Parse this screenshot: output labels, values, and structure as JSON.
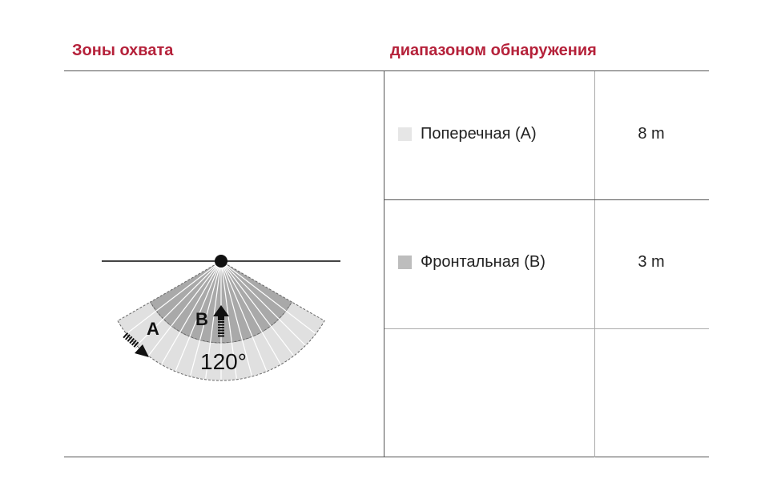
{
  "headers": {
    "zones": "Зоны охвата",
    "range": "диапазоном обнаружения"
  },
  "rows": [
    {
      "label": "Поперечная (A)",
      "value": "8 m",
      "swatch_color": "#e6e6e6"
    },
    {
      "label": "Фронтальная (B)",
      "value": "3 m",
      "swatch_color": "#bdbdbd"
    }
  ],
  "diagram": {
    "label_a": "A",
    "label_b": "B",
    "angle": "120°"
  },
  "colors": {
    "header": "#b5213a",
    "zone_a": "#e0e0e0",
    "zone_b": "#a9a9a9"
  }
}
